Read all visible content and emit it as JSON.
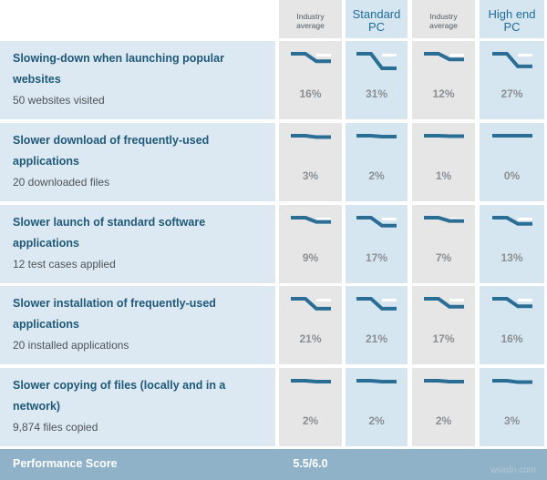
{
  "header": {
    "columns": [
      {
        "lines": [
          "Industry",
          "average"
        ],
        "style": "small"
      },
      {
        "lines": [
          "Standard",
          "PC"
        ],
        "style": "big"
      },
      {
        "lines": [
          "Industry",
          "average"
        ],
        "style": "small"
      },
      {
        "lines": [
          "High end",
          "PC"
        ],
        "style": "big"
      }
    ]
  },
  "rows": [
    {
      "title_lines": [
        "Slowing-down when launching popular",
        "websites"
      ],
      "subtitle": "50 websites visited",
      "values": [
        "16%",
        "31%",
        "12%",
        "27%"
      ],
      "levels": [
        0.16,
        0.31,
        0.12,
        0.27
      ]
    },
    {
      "title_lines": [
        "Slower download of frequently-used",
        "applications"
      ],
      "subtitle": "20 downloaded files",
      "values": [
        "3%",
        "2%",
        "1%",
        "0%"
      ],
      "levels": [
        0.03,
        0.02,
        0.01,
        0.0
      ]
    },
    {
      "title_lines": [
        "Slower launch of standard software",
        "applications"
      ],
      "subtitle": "12 test cases applied",
      "values": [
        "9%",
        "17%",
        "7%",
        "13%"
      ],
      "levels": [
        0.09,
        0.17,
        0.07,
        0.13
      ]
    },
    {
      "title_lines": [
        "Slower installation of frequently-used",
        "applications"
      ],
      "subtitle": "20 installed applications",
      "values": [
        "21%",
        "21%",
        "17%",
        "16%"
      ],
      "levels": [
        0.21,
        0.21,
        0.17,
        0.16
      ]
    },
    {
      "title_lines": [
        "Slower copying of files (locally and in a",
        "network)"
      ],
      "subtitle": "9,874 files copied",
      "values": [
        "2%",
        "2%",
        "2%",
        "3%"
      ],
      "levels": [
        0.02,
        0.02,
        0.02,
        0.03
      ]
    }
  ],
  "footer": {
    "label": "Performance Score",
    "score": "5.5/6.0"
  },
  "watermark": "wsxdn.com",
  "colors": {
    "row_bg": "#dce9f2",
    "gray_cell": "#e6e6e6",
    "blue_cell": "#d6e6f0",
    "line": "#2a6d95",
    "footer": "#8fb2c8"
  }
}
